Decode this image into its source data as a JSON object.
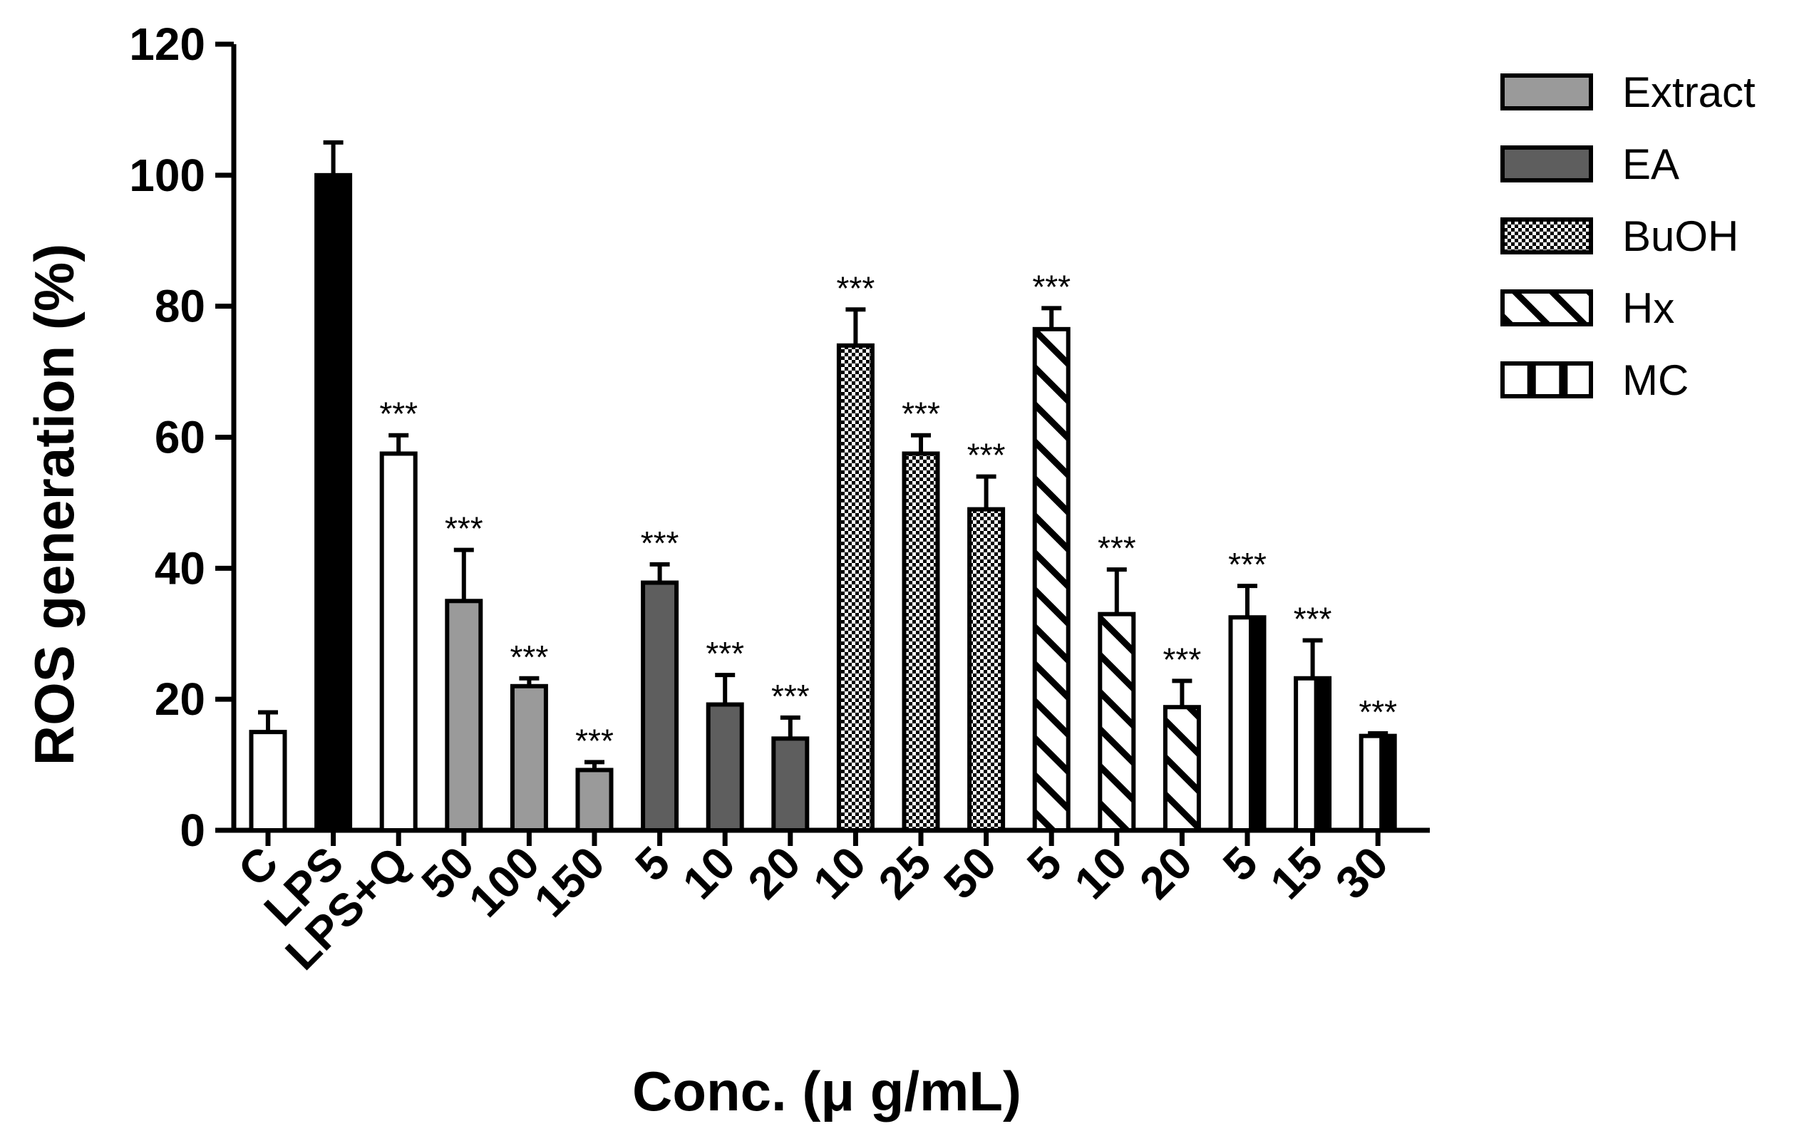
{
  "chart_data": {
    "type": "bar",
    "ylabel": "ROS generation (%)",
    "xlabel": "Conc. (μ g/mL)",
    "ylim": [
      0,
      120
    ],
    "yticks": [
      "0",
      "20",
      "40",
      "60",
      "80",
      "100",
      "120"
    ],
    "grid": false,
    "legend_position": "top-right",
    "legend": [
      {
        "name": "Extract",
        "pattern": "fill-gray"
      },
      {
        "name": "EA",
        "pattern": "fill-darkgray"
      },
      {
        "name": "BuOH",
        "pattern": "checker"
      },
      {
        "name": "Hx",
        "pattern": "diagonal"
      },
      {
        "name": "MC",
        "pattern": "vertical-stripes"
      }
    ],
    "colors": {
      "black": "#000000",
      "extract": "#9a9a9a",
      "ea": "#5e5e5e",
      "white": "#ffffff"
    },
    "bars": [
      {
        "label": "C",
        "value": 15,
        "error": 3,
        "group": "control",
        "pattern": "white",
        "sig": ""
      },
      {
        "label": "LPS",
        "value": 100,
        "error": 5,
        "group": "control",
        "pattern": "black",
        "sig": ""
      },
      {
        "label": "LPS+Q",
        "value": 57.5,
        "error": 2.8,
        "group": "control",
        "pattern": "white",
        "sig": "***"
      },
      {
        "label": "50",
        "value": 35,
        "error": 7.8,
        "group": "Extract",
        "pattern": "fill-gray",
        "sig": "***"
      },
      {
        "label": "100",
        "value": 22,
        "error": 1.2,
        "group": "Extract",
        "pattern": "fill-gray",
        "sig": "***"
      },
      {
        "label": "150",
        "value": 9.2,
        "error": 1.2,
        "group": "Extract",
        "pattern": "fill-gray",
        "sig": "***"
      },
      {
        "label": "5",
        "value": 37.8,
        "error": 2.8,
        "group": "EA",
        "pattern": "fill-darkgray",
        "sig": "***"
      },
      {
        "label": "10",
        "value": 19.2,
        "error": 4.5,
        "group": "EA",
        "pattern": "fill-darkgray",
        "sig": "***"
      },
      {
        "label": "20",
        "value": 14,
        "error": 3.2,
        "group": "EA",
        "pattern": "fill-darkgray",
        "sig": "***"
      },
      {
        "label": "10",
        "value": 74,
        "error": 5.5,
        "group": "BuOH",
        "pattern": "checker",
        "sig": "***"
      },
      {
        "label": "25",
        "value": 57.5,
        "error": 2.8,
        "group": "BuOH",
        "pattern": "checker",
        "sig": "***"
      },
      {
        "label": "50",
        "value": 49,
        "error": 5,
        "group": "BuOH",
        "pattern": "checker",
        "sig": "***"
      },
      {
        "label": "5",
        "value": 76.5,
        "error": 3.2,
        "group": "Hx",
        "pattern": "diagonal",
        "sig": "***"
      },
      {
        "label": "10",
        "value": 33,
        "error": 6.8,
        "group": "Hx",
        "pattern": "diagonal",
        "sig": "***"
      },
      {
        "label": "20",
        "value": 18.8,
        "error": 4,
        "group": "Hx",
        "pattern": "diagonal",
        "sig": "***"
      },
      {
        "label": "5",
        "value": 32.5,
        "error": 4.8,
        "group": "MC",
        "pattern": "vertical-stripes",
        "sig": "***"
      },
      {
        "label": "15",
        "value": 23.2,
        "error": 5.8,
        "group": "MC",
        "pattern": "vertical-stripes",
        "sig": "***"
      },
      {
        "label": "30",
        "value": 14.4,
        "error": 0.4,
        "group": "MC",
        "pattern": "vertical-stripes",
        "sig": "***"
      }
    ]
  }
}
